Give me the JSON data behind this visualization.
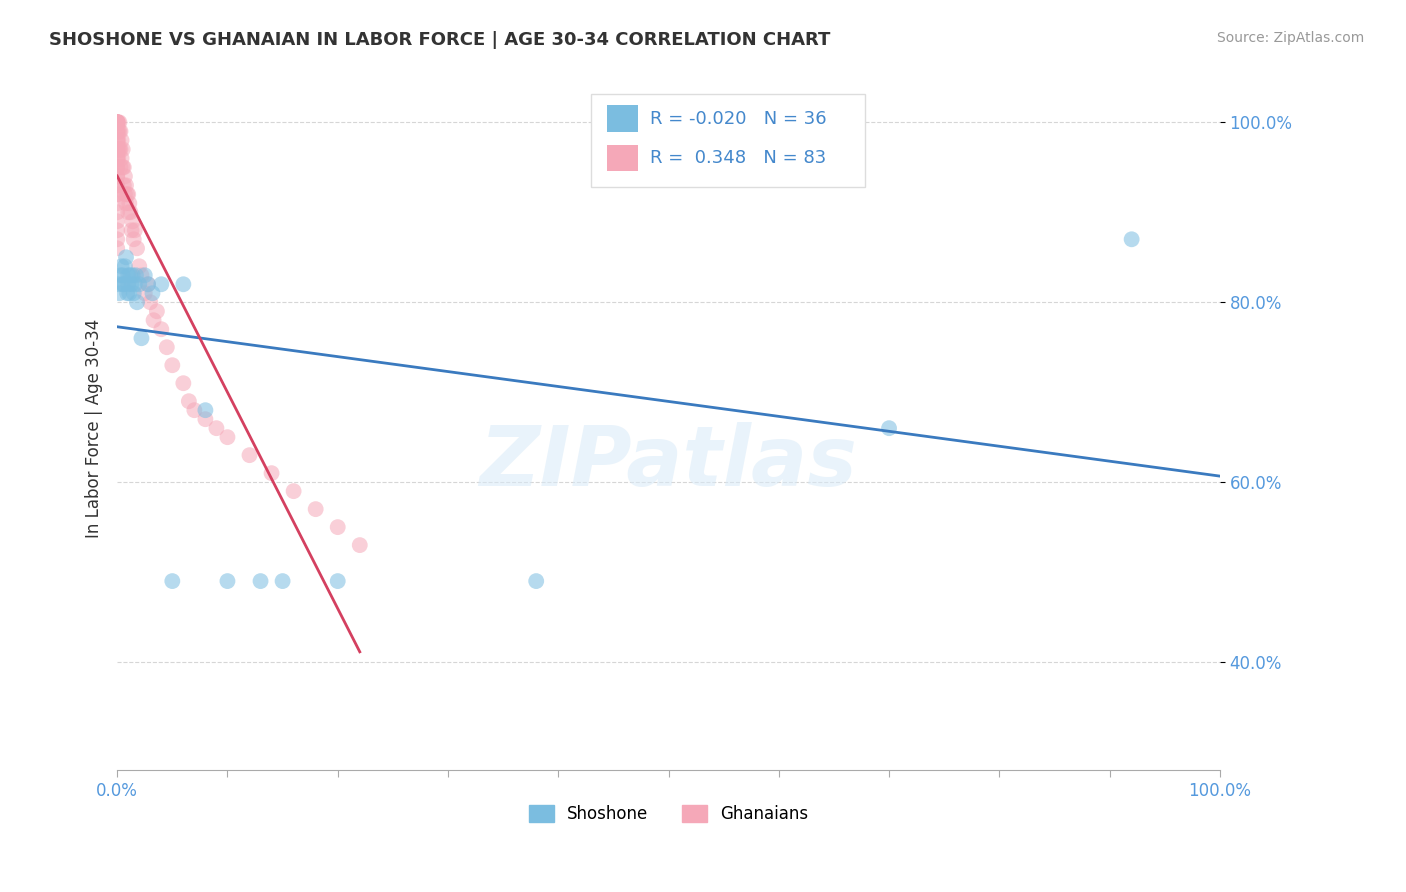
{
  "title": "SHOSHONE VS GHANAIAN IN LABOR FORCE | AGE 30-34 CORRELATION CHART",
  "source": "Source: ZipAtlas.com",
  "ylabel": "In Labor Force | Age 30-34",
  "xlim": [
    0.0,
    1.0
  ],
  "ylim": [
    0.28,
    1.04
  ],
  "y_ticks": [
    0.4,
    0.6,
    0.8,
    1.0
  ],
  "shoshone_color": "#7bbde0",
  "ghanaian_color": "#f5a8b8",
  "trend_shoshone_color": "#3a7abf",
  "trend_ghanaian_color": "#d44060",
  "background_color": "#ffffff",
  "grid_color": "#cccccc",
  "watermark_text": "ZIPatlas",
  "R_shoshone": -0.02,
  "N_shoshone": 36,
  "R_ghanaian": 0.348,
  "N_ghanaian": 83,
  "shoshone_x": [
    0.001,
    0.002,
    0.003,
    0.004,
    0.005,
    0.005,
    0.006,
    0.007,
    0.008,
    0.009,
    0.01,
    0.01,
    0.011,
    0.012,
    0.013,
    0.014,
    0.015,
    0.016,
    0.017,
    0.018,
    0.02,
    0.022,
    0.025,
    0.028,
    0.032,
    0.04,
    0.05,
    0.06,
    0.08,
    0.1,
    0.13,
    0.15,
    0.2,
    0.38,
    0.7,
    0.92
  ],
  "shoshone_y": [
    0.82,
    0.81,
    0.83,
    0.84,
    0.82,
    0.83,
    0.82,
    0.84,
    0.85,
    0.81,
    0.83,
    0.82,
    0.81,
    0.83,
    0.82,
    0.83,
    0.81,
    0.82,
    0.83,
    0.8,
    0.82,
    0.76,
    0.83,
    0.82,
    0.81,
    0.82,
    0.49,
    0.82,
    0.68,
    0.49,
    0.49,
    0.49,
    0.49,
    0.49,
    0.66,
    0.87
  ],
  "ghanaian_x": [
    0.0,
    0.0,
    0.0,
    0.0,
    0.0,
    0.0,
    0.0,
    0.0,
    0.0,
    0.0,
    0.0,
    0.0,
    0.0,
    0.0,
    0.0,
    0.0,
    0.0,
    0.0,
    0.0,
    0.0,
    0.0,
    0.0,
    0.0,
    0.0,
    0.0,
    0.0,
    0.0,
    0.0,
    0.0,
    0.0,
    0.001,
    0.001,
    0.001,
    0.001,
    0.001,
    0.002,
    0.002,
    0.002,
    0.003,
    0.003,
    0.003,
    0.004,
    0.004,
    0.005,
    0.005,
    0.006,
    0.006,
    0.007,
    0.007,
    0.008,
    0.008,
    0.009,
    0.01,
    0.01,
    0.011,
    0.012,
    0.013,
    0.014,
    0.015,
    0.016,
    0.018,
    0.02,
    0.022,
    0.025,
    0.028,
    0.03,
    0.033,
    0.036,
    0.04,
    0.045,
    0.05,
    0.06,
    0.065,
    0.07,
    0.08,
    0.09,
    0.1,
    0.12,
    0.14,
    0.16,
    0.18,
    0.2,
    0.22
  ],
  "ghanaian_y": [
    0.92,
    0.93,
    0.94,
    0.95,
    0.96,
    0.97,
    0.98,
    0.99,
    1.0,
    1.0,
    1.0,
    1.0,
    1.0,
    1.0,
    1.0,
    1.0,
    0.99,
    0.98,
    0.97,
    0.96,
    0.95,
    0.94,
    0.93,
    0.92,
    0.91,
    0.9,
    0.89,
    0.88,
    0.87,
    0.86,
    0.96,
    0.97,
    0.98,
    0.99,
    1.0,
    0.97,
    0.99,
    1.0,
    0.95,
    0.97,
    0.99,
    0.96,
    0.98,
    0.95,
    0.97,
    0.93,
    0.95,
    0.92,
    0.94,
    0.91,
    0.93,
    0.92,
    0.9,
    0.92,
    0.91,
    0.9,
    0.88,
    0.89,
    0.87,
    0.88,
    0.86,
    0.84,
    0.83,
    0.81,
    0.82,
    0.8,
    0.78,
    0.79,
    0.77,
    0.75,
    0.73,
    0.71,
    0.69,
    0.68,
    0.67,
    0.66,
    0.65,
    0.63,
    0.61,
    0.59,
    0.57,
    0.55,
    0.53
  ]
}
